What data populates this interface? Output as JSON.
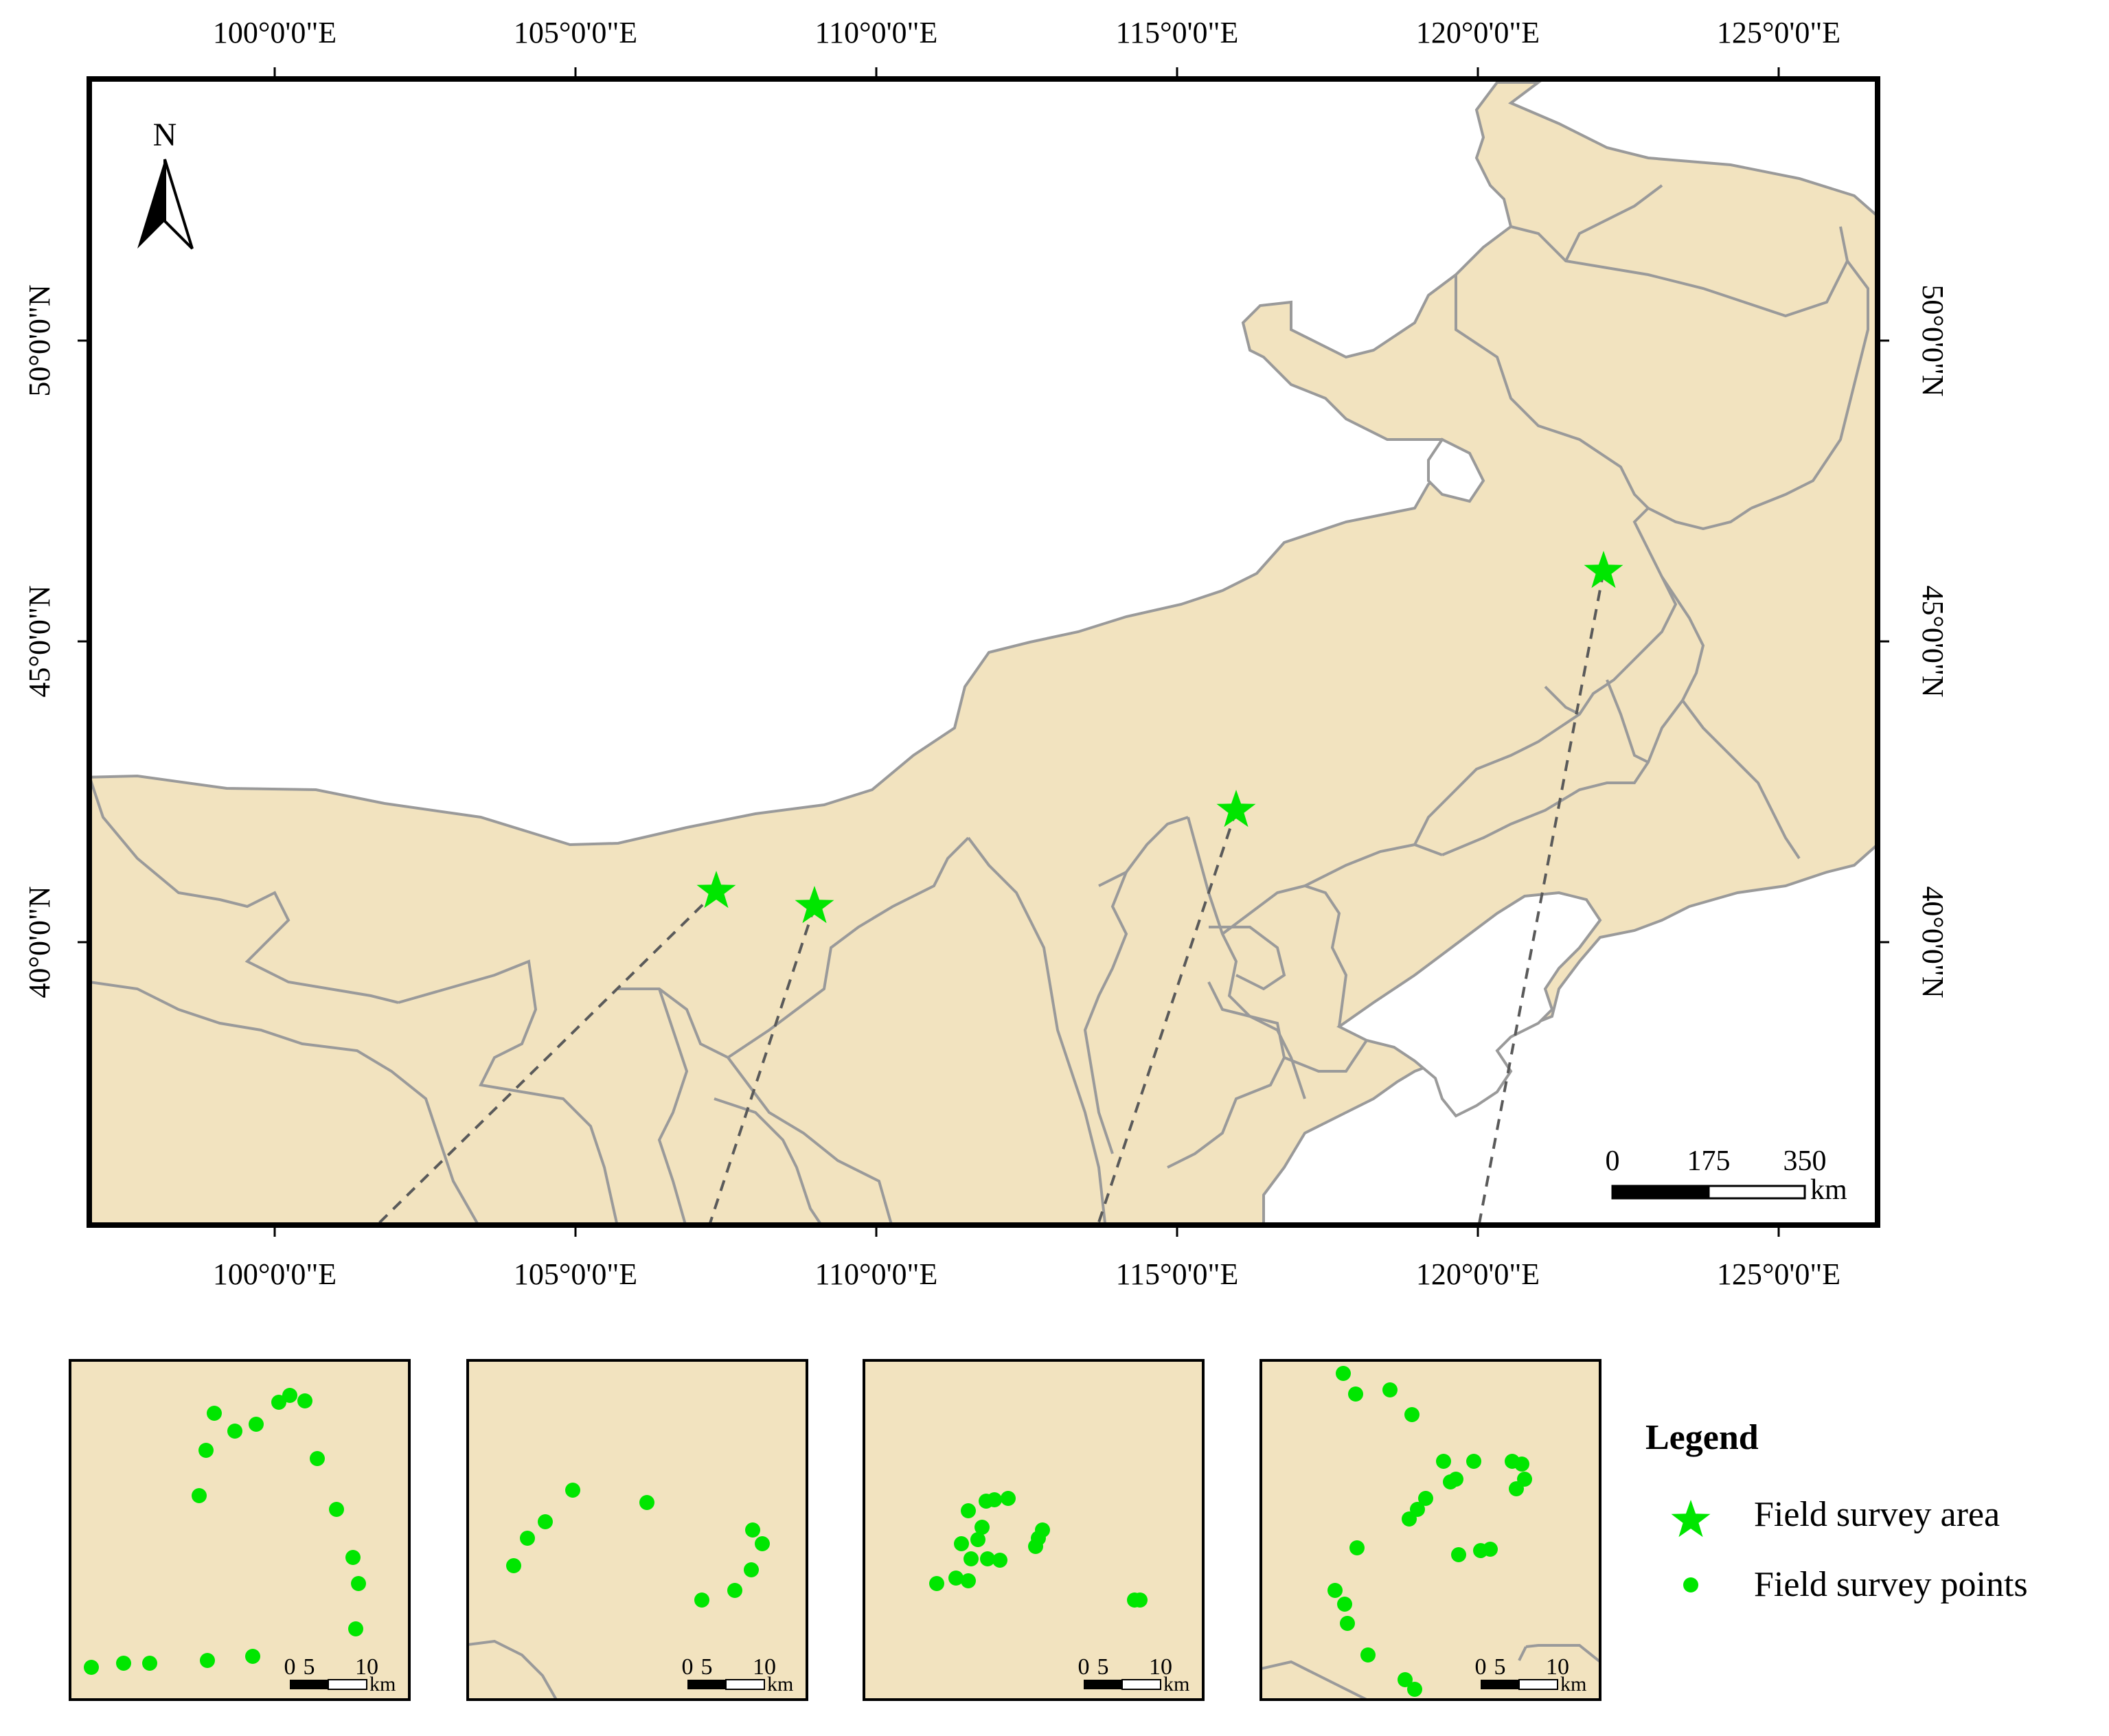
{
  "map": {
    "colors": {
      "land": "#f2e3bf",
      "boundary": "#9a9a9a",
      "frame": "#000000",
      "sea": "#ffffff",
      "marker": "#00e600",
      "arrow": "#5a5a5a"
    },
    "lon_labels": [
      "100°0'0\"E",
      "105°0'0\"E",
      "110°0'0\"E",
      "115°0'0\"E",
      "120°0'0\"E",
      "125°0'0\"E"
    ],
    "lat_labels": [
      "50°0'0\"N",
      "45°0'0\"N",
      "40°0'0\"N"
    ],
    "north_arrow_label": "N",
    "scale_bar": {
      "ticks": [
        "0",
        "175",
        "350"
      ],
      "unit": "km"
    },
    "inset_scale_bar": {
      "ticks": [
        "0",
        "5",
        "10"
      ],
      "unit": "km"
    },
    "legend": {
      "title": "Legend",
      "items": [
        {
          "label": "Field survey area",
          "symbol": "star-icon"
        },
        {
          "label": "Field survey points",
          "symbol": "dot-icon"
        }
      ]
    }
  }
}
